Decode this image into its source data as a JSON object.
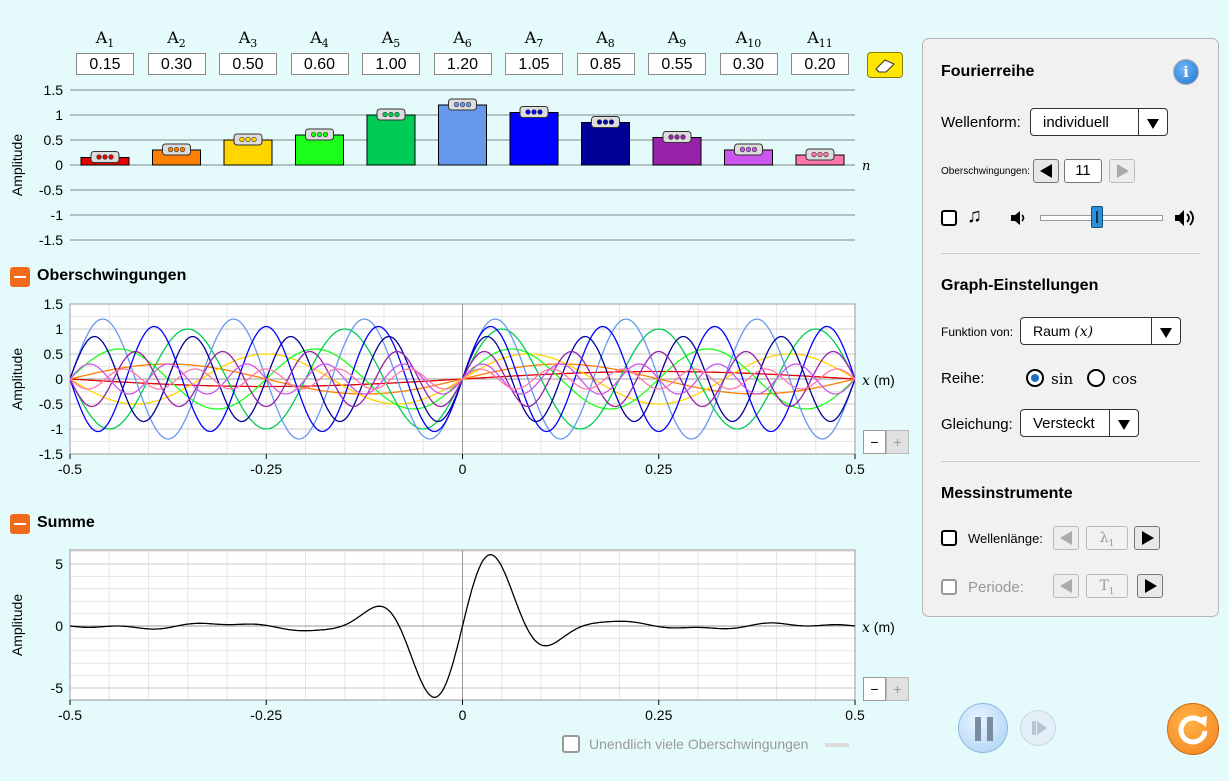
{
  "amplitudes": [
    {
      "label": "A",
      "sub": "1",
      "value": "0.15",
      "num": 0.15,
      "color": "#e60000"
    },
    {
      "label": "A",
      "sub": "2",
      "value": "0.30",
      "num": 0.3,
      "color": "#ff7f00"
    },
    {
      "label": "A",
      "sub": "3",
      "value": "0.50",
      "num": 0.5,
      "color": "#ffd500"
    },
    {
      "label": "A",
      "sub": "4",
      "value": "0.60",
      "num": 0.6,
      "color": "#1aff1a"
    },
    {
      "label": "A",
      "sub": "5",
      "value": "1.00",
      "num": 1.0,
      "color": "#00cc55"
    },
    {
      "label": "A",
      "sub": "6",
      "value": "1.20",
      "num": 1.2,
      "color": "#6699ee"
    },
    {
      "label": "A",
      "sub": "7",
      "value": "1.05",
      "num": 1.05,
      "color": "#0000ff"
    },
    {
      "label": "A",
      "sub": "8",
      "value": "0.85",
      "num": 0.85,
      "color": "#000099"
    },
    {
      "label": "A",
      "sub": "9",
      "value": "0.55",
      "num": 0.55,
      "color": "#9922aa"
    },
    {
      "label": "A",
      "sub": "10",
      "value": "0.30",
      "num": 0.3,
      "color": "#cc55ee"
    },
    {
      "label": "A",
      "sub": "11",
      "value": "0.20",
      "num": 0.2,
      "color": "#ff77aa"
    }
  ],
  "amplitude_chart": {
    "ylabel": "Amplitude",
    "yticks": [
      "1.5",
      "1",
      "0.5",
      "0",
      "-0.5",
      "-1",
      "-1.5"
    ],
    "xlabel": "n"
  },
  "harmonics": {
    "title": "Oberschwingungen",
    "ylabel": "Amplitude",
    "yticks": [
      "1.5",
      "1",
      "0.5",
      "0",
      "-0.5",
      "-1",
      "-1.5"
    ],
    "xticks": [
      "-0.5",
      "-0.25",
      "0",
      "0.25",
      "0.5"
    ],
    "xlabel_var": "x",
    "xlabel_unit": "(m)"
  },
  "sum": {
    "title": "Summe",
    "ylabel": "Amplitude",
    "yticks": [
      "5",
      "0",
      "-5"
    ],
    "xticks": [
      "-0.5",
      "-0.25",
      "0",
      "0.25",
      "0.5"
    ],
    "xlabel_var": "x",
    "xlabel_unit": "(m)"
  },
  "infinite_label": "Unendlich viele Oberschwingungen",
  "zoom": {
    "minus": "−",
    "plus": "+"
  },
  "panel": {
    "title": "Fourierreihe",
    "waveform_label": "Wellenform:",
    "waveform_value": "individuell",
    "harmonics_label": "Oberschwingungen:",
    "harmonics_count": "11",
    "graph_title": "Graph-Einstellungen",
    "function_label": "Funktion von:",
    "function_value": "Raum",
    "function_var": "(x)",
    "series_label": "Reihe:",
    "sin_label": "sin",
    "cos_label": "cos",
    "equation_label": "Gleichung:",
    "equation_value": "Versteckt",
    "measure_title": "Messinstrumente",
    "wavelength_label": "Wellenlänge:",
    "wavelength_symbol": "λ",
    "wavelength_sub": "1",
    "period_label": "Periode:",
    "period_symbol": "T",
    "period_sub": "1"
  }
}
